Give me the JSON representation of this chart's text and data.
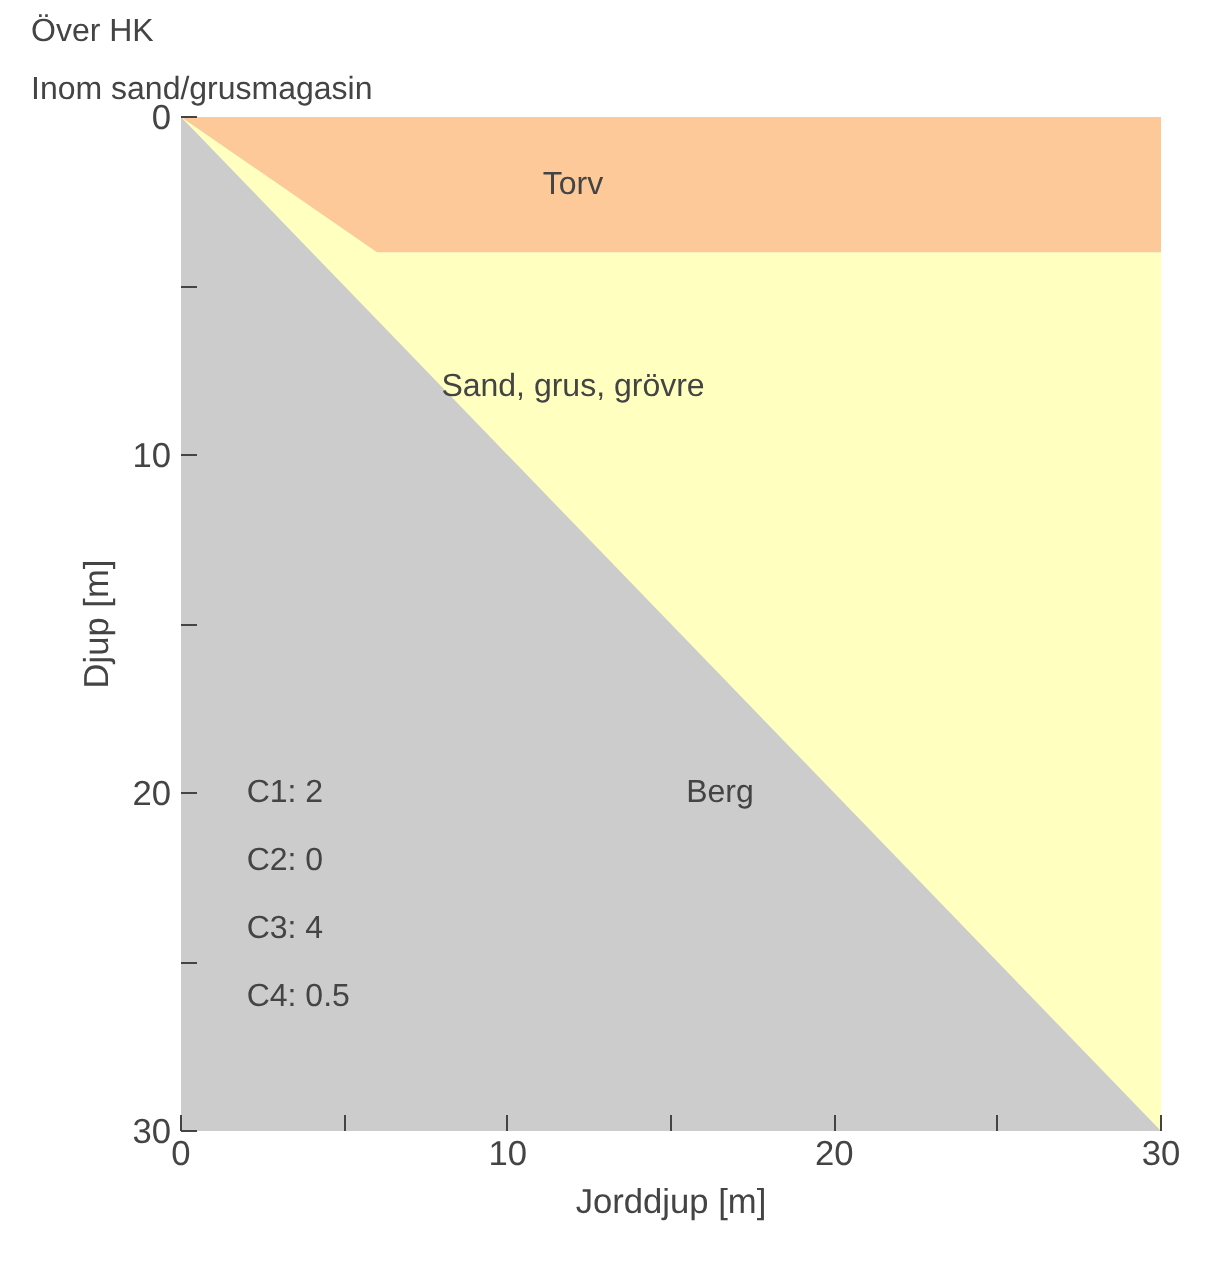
{
  "chart_data": {
    "type": "area",
    "stacked": true,
    "title": "Över HK",
    "subtitle": "Inom sand/grusmagasin",
    "xlabel": "Jorddjup [m]",
    "ylabel": "Djup [m]",
    "x": [
      0,
      6,
      30
    ],
    "series": [
      {
        "name": "Torv",
        "color": "#fdc999",
        "values": [
          0,
          4,
          4
        ]
      },
      {
        "name": "Sand, grus, grövre",
        "color": "#ffffc0",
        "values": [
          0,
          2,
          26
        ]
      }
    ],
    "xlim": [
      0,
      30
    ],
    "ylim": [
      30,
      0
    ],
    "xticks": [
      0,
      {
        "value": 5,
        "label": null
      },
      10,
      {
        "value": 15,
        "label": null
      },
      20,
      {
        "value": 25,
        "label": null
      },
      30
    ],
    "yticks": [
      0,
      {
        "value": 5,
        "label": null
      },
      10,
      {
        "value": 15,
        "label": null
      },
      20,
      {
        "value": 25,
        "label": null
      },
      30
    ],
    "grid": false,
    "annotations": [
      "Berg",
      "C1: 2",
      "C2: 0",
      "C3: 4",
      "C4: 0.5"
    ]
  }
}
